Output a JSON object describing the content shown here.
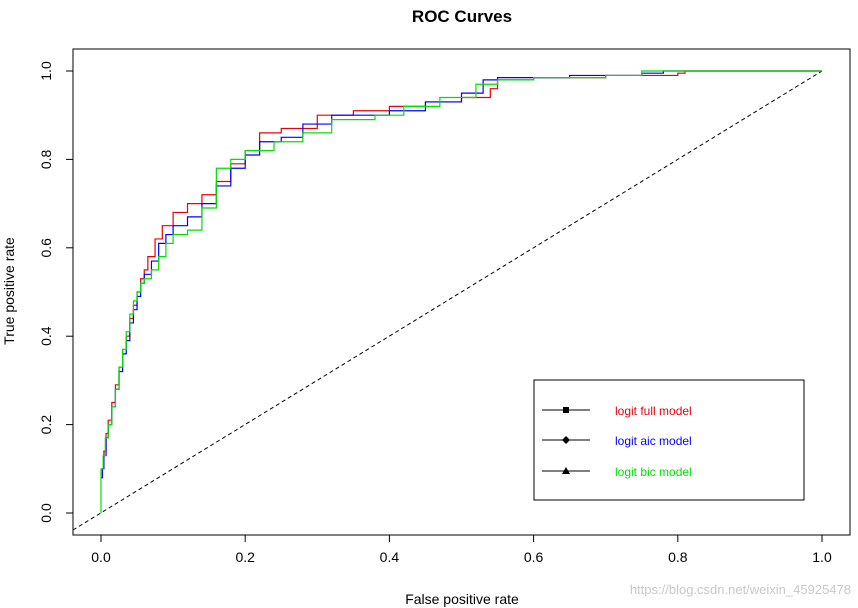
{
  "chart_data": {
    "type": "line",
    "title": "ROC Curves",
    "xlabel": "False positive rate",
    "ylabel": "True positive rate",
    "xlim": [
      0,
      1
    ],
    "ylim": [
      0,
      1
    ],
    "x_ticks": [
      "0.0",
      "0.2",
      "0.4",
      "0.6",
      "0.8",
      "1.0"
    ],
    "y_ticks": [
      "0.0",
      "0.2",
      "0.4",
      "0.6",
      "0.8",
      "1.0"
    ],
    "grid": false,
    "legend_position": "bottom-right",
    "reference_line": {
      "from": [
        0,
        0
      ],
      "to": [
        1,
        1
      ],
      "style": "dashed",
      "color": "#000000"
    },
    "series": [
      {
        "name": "logit full model",
        "color": "#e8000b",
        "marker": "square",
        "points": [
          [
            0,
            0.08
          ],
          [
            0.002,
            0.1
          ],
          [
            0.004,
            0.14
          ],
          [
            0.007,
            0.18
          ],
          [
            0.01,
            0.21
          ],
          [
            0.015,
            0.25
          ],
          [
            0.02,
            0.29
          ],
          [
            0.025,
            0.33
          ],
          [
            0.03,
            0.37
          ],
          [
            0.035,
            0.4
          ],
          [
            0.04,
            0.44
          ],
          [
            0.045,
            0.47
          ],
          [
            0.05,
            0.5
          ],
          [
            0.055,
            0.53
          ],
          [
            0.06,
            0.55
          ],
          [
            0.065,
            0.58
          ],
          [
            0.075,
            0.62
          ],
          [
            0.085,
            0.65
          ],
          [
            0.1,
            0.68
          ],
          [
            0.12,
            0.7
          ],
          [
            0.14,
            0.72
          ],
          [
            0.16,
            0.75
          ],
          [
            0.18,
            0.79
          ],
          [
            0.2,
            0.82
          ],
          [
            0.22,
            0.86
          ],
          [
            0.25,
            0.87
          ],
          [
            0.3,
            0.9
          ],
          [
            0.35,
            0.91
          ],
          [
            0.4,
            0.92
          ],
          [
            0.45,
            0.93
          ],
          [
            0.5,
            0.94
          ],
          [
            0.54,
            0.96
          ],
          [
            0.55,
            0.98
          ],
          [
            0.6,
            0.985
          ],
          [
            0.7,
            0.99
          ],
          [
            0.8,
            0.995
          ],
          [
            0.81,
            1
          ],
          [
            0.9,
            1
          ],
          [
            1,
            1
          ]
        ]
      },
      {
        "name": "logit aic model",
        "color": "#0000ff",
        "marker": "diamond",
        "points": [
          [
            0,
            0.08
          ],
          [
            0.002,
            0.1
          ],
          [
            0.004,
            0.13
          ],
          [
            0.007,
            0.17
          ],
          [
            0.01,
            0.2
          ],
          [
            0.015,
            0.24
          ],
          [
            0.02,
            0.28
          ],
          [
            0.025,
            0.32
          ],
          [
            0.03,
            0.36
          ],
          [
            0.035,
            0.39
          ],
          [
            0.04,
            0.43
          ],
          [
            0.045,
            0.46
          ],
          [
            0.05,
            0.49
          ],
          [
            0.055,
            0.52
          ],
          [
            0.06,
            0.54
          ],
          [
            0.07,
            0.57
          ],
          [
            0.08,
            0.61
          ],
          [
            0.09,
            0.63
          ],
          [
            0.1,
            0.65
          ],
          [
            0.12,
            0.67
          ],
          [
            0.14,
            0.7
          ],
          [
            0.16,
            0.74
          ],
          [
            0.18,
            0.78
          ],
          [
            0.2,
            0.81
          ],
          [
            0.22,
            0.84
          ],
          [
            0.25,
            0.85
          ],
          [
            0.28,
            0.88
          ],
          [
            0.32,
            0.9
          ],
          [
            0.4,
            0.91
          ],
          [
            0.45,
            0.93
          ],
          [
            0.5,
            0.95
          ],
          [
            0.53,
            0.98
          ],
          [
            0.55,
            0.985
          ],
          [
            0.65,
            0.99
          ],
          [
            0.75,
            0.995
          ],
          [
            0.78,
            1
          ],
          [
            0.9,
            1
          ],
          [
            1,
            1
          ]
        ]
      },
      {
        "name": "logit bic model",
        "color": "#00e000",
        "marker": "triangle",
        "points": [
          [
            0,
            0.0
          ],
          [
            0,
            0.1
          ],
          [
            0.003,
            0.13
          ],
          [
            0.006,
            0.17
          ],
          [
            0.01,
            0.2
          ],
          [
            0.015,
            0.24
          ],
          [
            0.02,
            0.28
          ],
          [
            0.025,
            0.33
          ],
          [
            0.03,
            0.37
          ],
          [
            0.035,
            0.41
          ],
          [
            0.04,
            0.45
          ],
          [
            0.045,
            0.48
          ],
          [
            0.05,
            0.5
          ],
          [
            0.055,
            0.52
          ],
          [
            0.06,
            0.53
          ],
          [
            0.07,
            0.55
          ],
          [
            0.08,
            0.58
          ],
          [
            0.09,
            0.61
          ],
          [
            0.1,
            0.63
          ],
          [
            0.12,
            0.64
          ],
          [
            0.14,
            0.69
          ],
          [
            0.16,
            0.78
          ],
          [
            0.18,
            0.8
          ],
          [
            0.2,
            0.82
          ],
          [
            0.24,
            0.84
          ],
          [
            0.28,
            0.86
          ],
          [
            0.32,
            0.89
          ],
          [
            0.38,
            0.9
          ],
          [
            0.42,
            0.92
          ],
          [
            0.47,
            0.94
          ],
          [
            0.52,
            0.97
          ],
          [
            0.55,
            0.98
          ],
          [
            0.6,
            0.985
          ],
          [
            0.7,
            0.99
          ],
          [
            0.75,
            1
          ],
          [
            0.9,
            1
          ],
          [
            1,
            1
          ]
        ]
      }
    ]
  },
  "watermark": "https://blog.csdn.net/weixin_45925478"
}
